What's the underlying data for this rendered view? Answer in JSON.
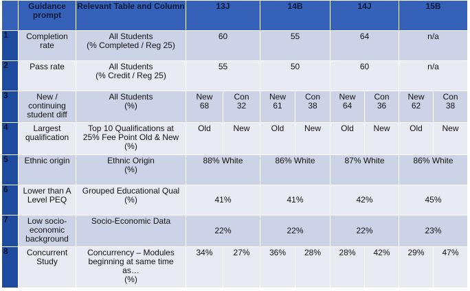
{
  "table": {
    "header": [
      "Guidance prompt",
      "Relevant Table and Column",
      "13J",
      "14B",
      "14J",
      "15B"
    ],
    "rows": [
      {
        "number": "1",
        "prompt": "Completion rate",
        "source": "All Students\n(% Completed / Reg 25)",
        "values": [
          "60",
          "55",
          "64",
          "n/a"
        ]
      },
      {
        "number": "2",
        "prompt": "Pass rate",
        "source": "All Students\n(% Credit / Reg 25)",
        "values": [
          "55",
          "50",
          "60",
          "n/a"
        ]
      },
      {
        "number": "3",
        "prompt": "New /\ncontinuing\nstudent diff",
        "source": "All Students\n(%)",
        "values": [
          [
            "New\n68",
            "Con\n32"
          ],
          [
            "New\n61",
            "Con\n38"
          ],
          [
            "New\n64",
            "Con\n36"
          ],
          [
            "New\n62",
            "Con\n38"
          ]
        ]
      },
      {
        "number": "4",
        "prompt": "Largest\nqualification",
        "source": "Top 10 Qualifications at\n25% Fee Point Old & New\n(%)",
        "values": [
          [
            "Old",
            "New"
          ],
          [
            "Old",
            "New"
          ],
          [
            "Old",
            "New"
          ],
          [
            "Old",
            "New"
          ]
        ]
      },
      {
        "number": "5",
        "prompt": "Ethnic origin",
        "source": "Ethnic Origin\n(%)",
        "values": [
          "88% White",
          "86% White",
          "87% White",
          "86% White"
        ]
      },
      {
        "number": "6",
        "prompt": "Lower than A\nLevel PEQ",
        "source": "Grouped Educational Qual\n(%)",
        "values": [
          "41%",
          "41%",
          "42%",
          "45%"
        ]
      },
      {
        "number": "7",
        "prompt": "Low socio-\neconomic\nbackground",
        "source": "Socio-Economic Data",
        "values": [
          "22%",
          "22%",
          "22%",
          "23%"
        ]
      },
      {
        "number": "8",
        "prompt": "Concurrent\nStudy",
        "source": "Concurrency – Modules\nbeginning  at same time\nas…\n(%)",
        "values": [
          [
            "34%",
            "27%"
          ],
          [
            "36%",
            "28%"
          ],
          [
            "28%",
            "42%"
          ],
          [
            "29%",
            "47%"
          ]
        ]
      }
    ]
  }
}
